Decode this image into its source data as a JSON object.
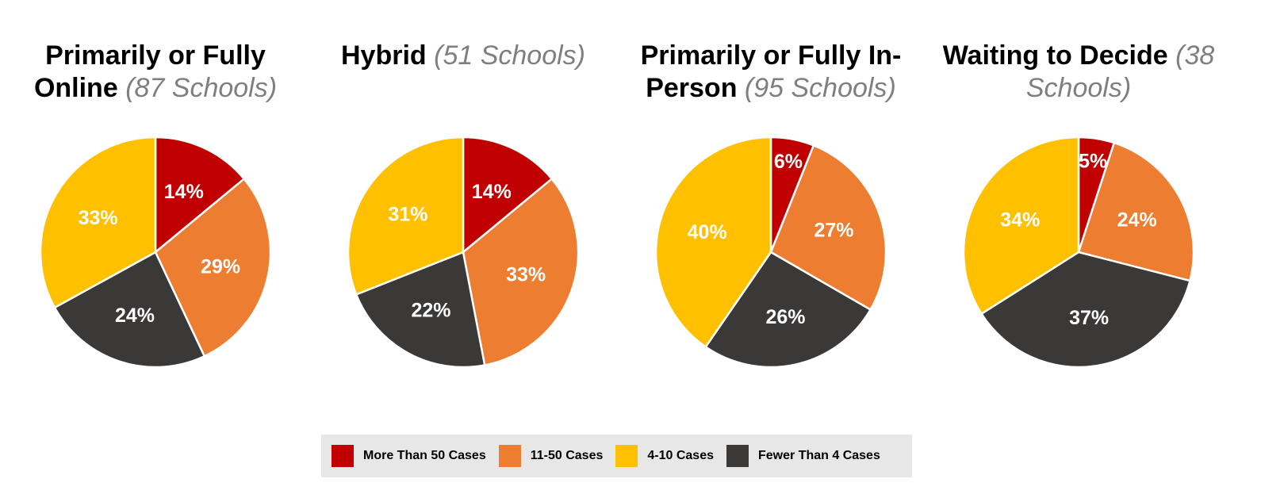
{
  "colors": {
    "more_than_50": "#c00000",
    "c11_50": "#ed7d31",
    "c4_10": "#ffc000",
    "fewer_than_4": "#3b3838"
  },
  "legend": [
    {
      "label": "More Than 50 Cases",
      "color": "#c00000"
    },
    {
      "label": "11-50 Cases",
      "color": "#ed7d31"
    },
    {
      "label": "4-10 Cases",
      "color": "#ffc000"
    },
    {
      "label": "Fewer Than 4 Cases",
      "color": "#3b3838"
    }
  ],
  "chart_data": [
    {
      "type": "pie",
      "title": "Primarily or Fully Online",
      "subtitle": "(87 Schools)",
      "categories": [
        "More Than 50 Cases",
        "11-50 Cases",
        "Fewer Than 4 Cases",
        "4-10 Cases"
      ],
      "values": [
        14,
        29,
        24,
        33
      ],
      "labels": [
        "14%",
        "29%",
        "24%",
        "33%"
      ]
    },
    {
      "type": "pie",
      "title": "Hybrid",
      "subtitle": "(51 Schools)",
      "categories": [
        "More Than 50 Cases",
        "11-50 Cases",
        "Fewer Than 4 Cases",
        "4-10 Cases"
      ],
      "values": [
        14,
        33,
        22,
        31
      ],
      "labels": [
        "14%",
        "33%",
        "22%",
        "31%"
      ]
    },
    {
      "type": "pie",
      "title": "Primarily or Fully In-Person",
      "subtitle": "(95 Schools)",
      "categories": [
        "More Than 50 Cases",
        "11-50 Cases",
        "Fewer Than 4 Cases",
        "4-10 Cases"
      ],
      "values": [
        6,
        27,
        26,
        40
      ],
      "labels": [
        "6%",
        "27%",
        "26%",
        "40%"
      ]
    },
    {
      "type": "pie",
      "title": "Waiting to Decide",
      "subtitle": "(38 Schools)",
      "categories": [
        "More Than 50 Cases",
        "11-50 Cases",
        "Fewer Than 4 Cases",
        "4-10 Cases"
      ],
      "values": [
        5,
        24,
        37,
        34
      ],
      "labels": [
        "5%",
        "24%",
        "37%",
        "34%"
      ]
    }
  ]
}
